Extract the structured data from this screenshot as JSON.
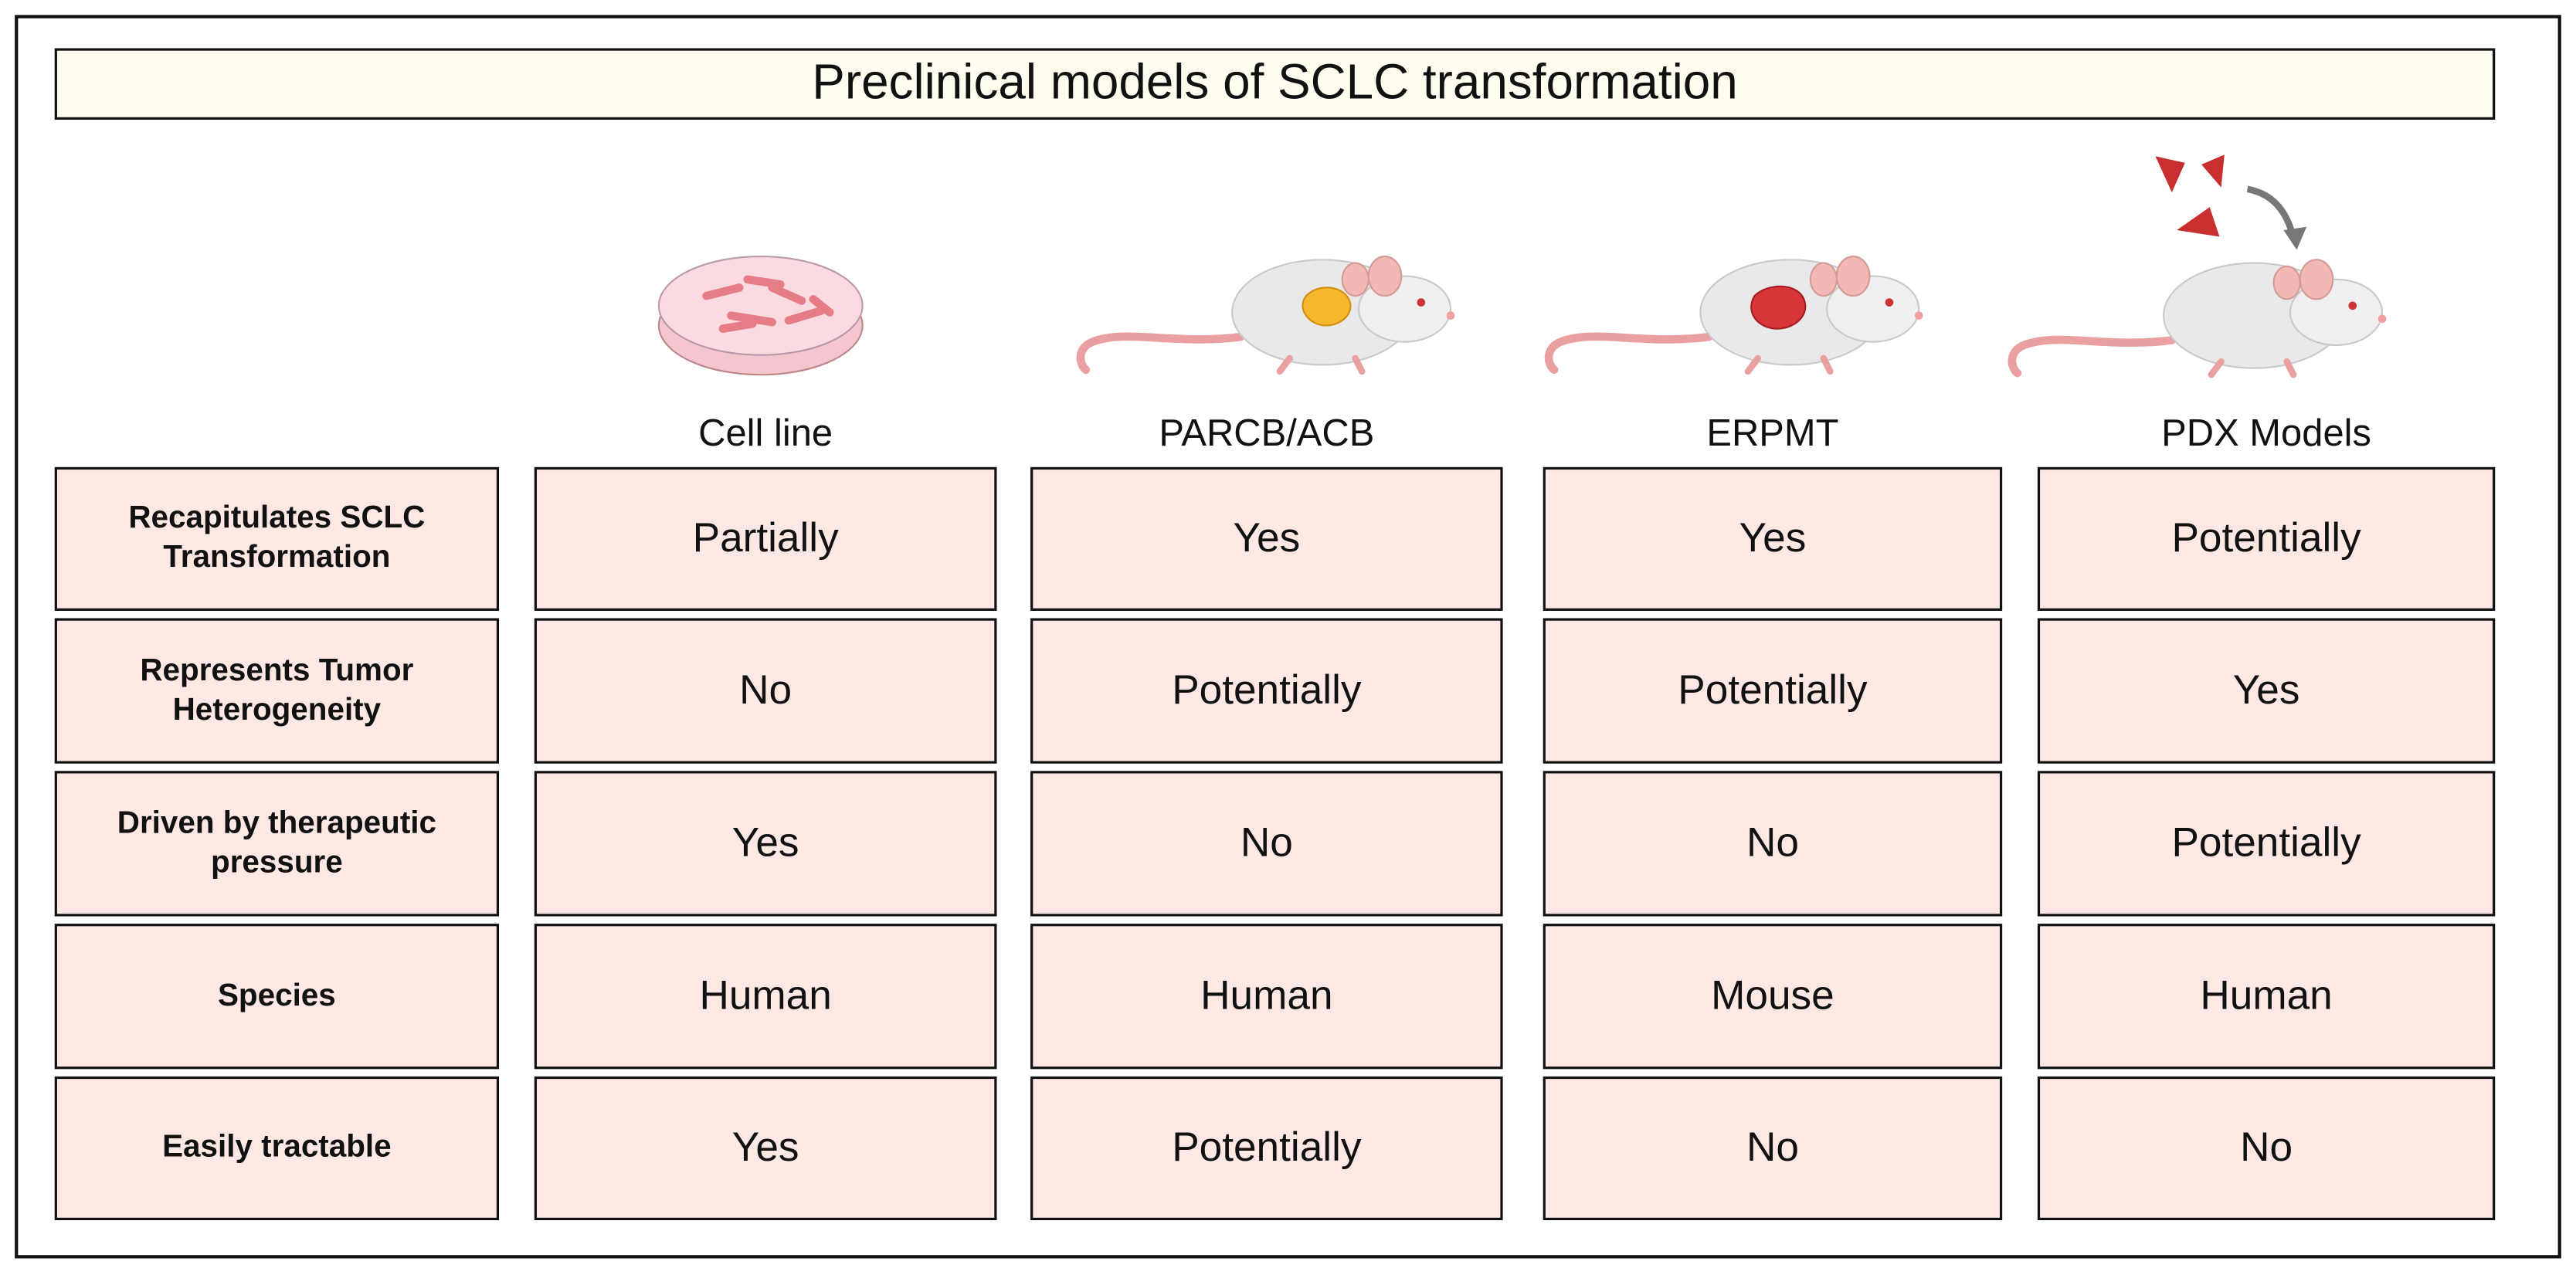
{
  "header": {
    "title": "Preclinical models of SCLC transformation"
  },
  "columns": [
    "Cell line",
    "PARCB/ACB",
    "ERPMT",
    "PDX Models"
  ],
  "rows": [
    {
      "label": "Recapitulates SCLC Transformation",
      "cells": [
        "Partially",
        "Yes",
        "Yes",
        "Potentially"
      ]
    },
    {
      "label": "Represents Tumor Heterogeneity",
      "cells": [
        "No",
        "Potentially",
        "Potentially",
        "Yes"
      ]
    },
    {
      "label": "Driven by therapeutic pressure",
      "cells": [
        "Yes",
        "No",
        "No",
        "Potentially"
      ]
    },
    {
      "label": "Species",
      "cells": [
        "Human",
        "Human",
        "Mouse",
        "Human"
      ]
    },
    {
      "label": "Easily tractable",
      "cells": [
        "Yes",
        "Potentially",
        "No",
        "No"
      ]
    }
  ]
}
